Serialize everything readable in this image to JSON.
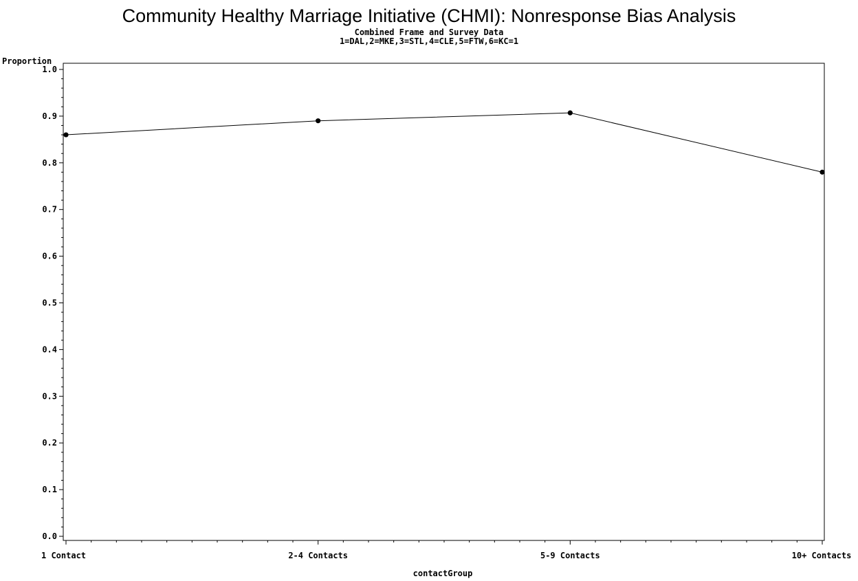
{
  "chart_data": {
    "type": "line",
    "title": "Community Healthy Marriage Initiative (CHMI): Nonresponse Bias Analysis",
    "subtitle": "Combined Frame and Survey Data",
    "subtitle2": "1=DAL,2=MKE,3=STL,4=CLE,5=FTW,6=KC=1",
    "xlabel": "contactGroup",
    "ylabel": "Proportion",
    "categories": [
      "1 Contact",
      "2-4 Contacts",
      "5-9 Contacts",
      "10+ Contacts"
    ],
    "series": [
      {
        "values": [
          0.86,
          0.89,
          0.907,
          0.78
        ]
      }
    ],
    "ylim": [
      0.0,
      1.0
    ],
    "yticks": [
      "0.0",
      "0.1",
      "0.2",
      "0.3",
      "0.4",
      "0.5",
      "0.6",
      "0.7",
      "0.8",
      "0.9",
      "1.0"
    ],
    "grid": false,
    "legend": "none",
    "line_color": "#000000",
    "marker_color": "#000000"
  }
}
